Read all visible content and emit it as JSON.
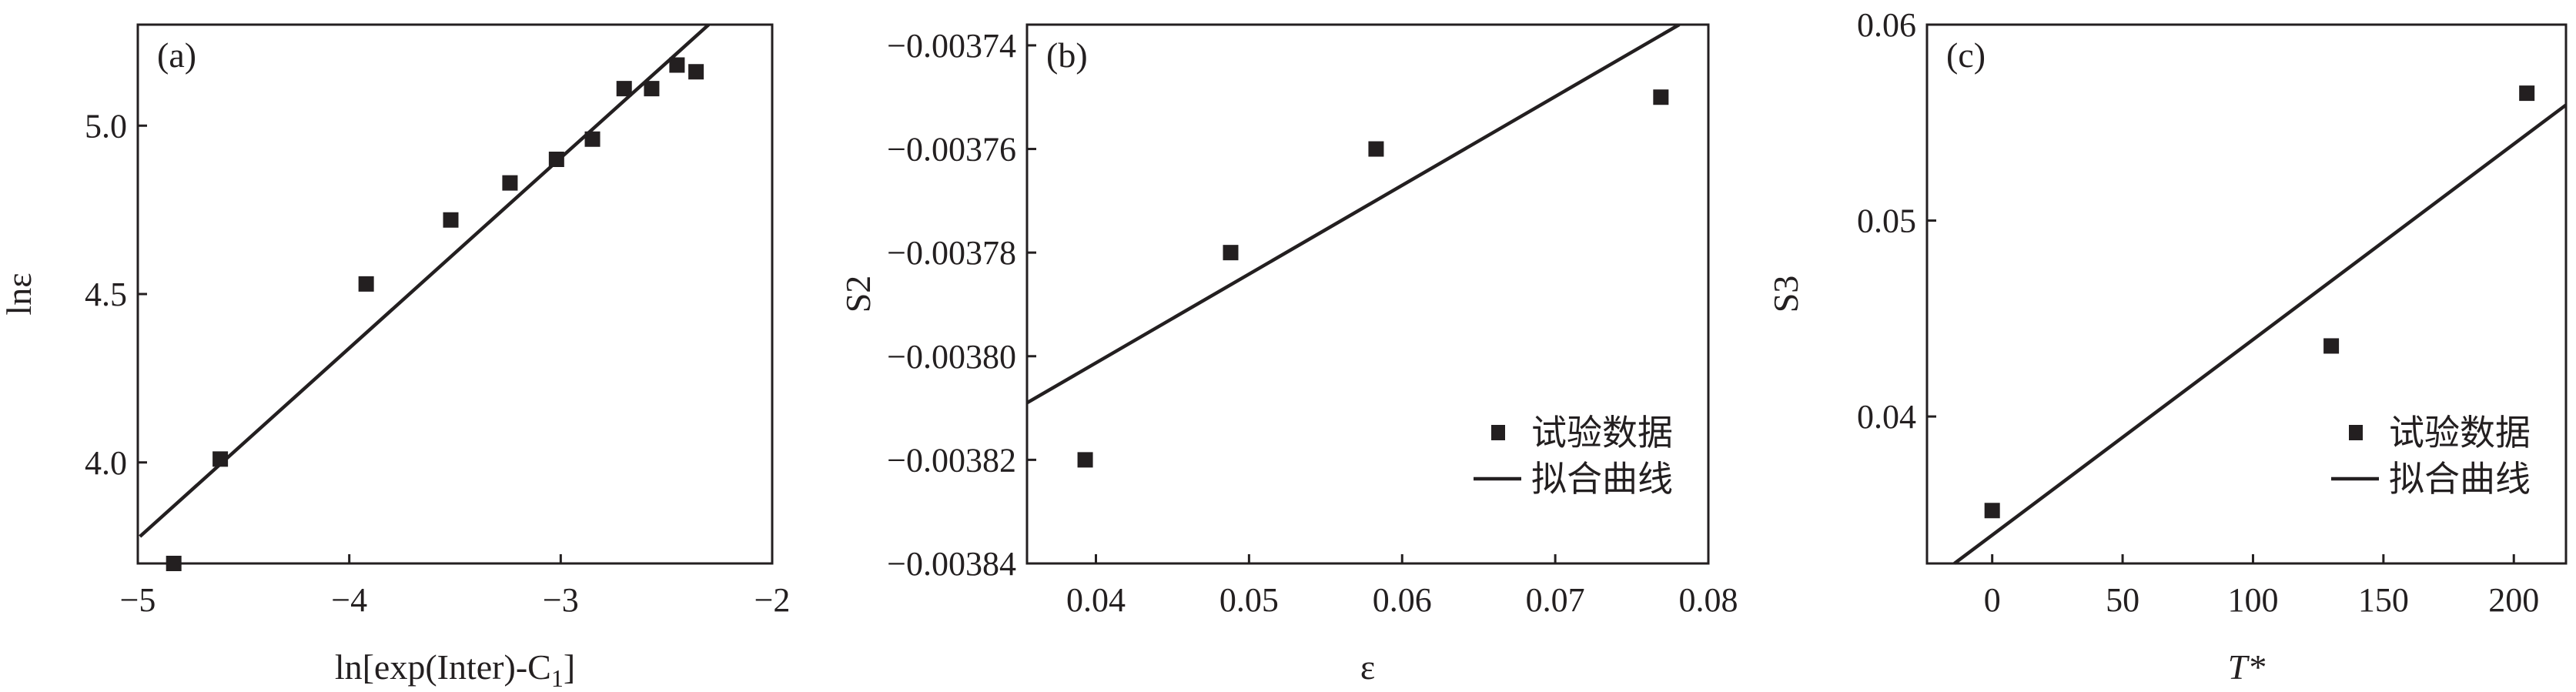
{
  "chart_data": [
    {
      "type": "scatter",
      "panel_label": "(a)",
      "xlabel": "ln[exp(Inter)-C",
      "xlabel_sub": "1",
      "xlabel_end": "]",
      "ylabel": "lnε",
      "xlim": [
        -5,
        -2
      ],
      "ylim": [
        3.7,
        5.3
      ],
      "xticks": [
        -5,
        -4,
        -3,
        -2
      ],
      "xtick_labels": [
        "−5",
        "−4",
        "−3",
        "−2"
      ],
      "yticks": [
        4.0,
        4.5,
        5.0
      ],
      "ytick_labels": [
        "4.0",
        "4.5",
        "5.0"
      ],
      "grid": false,
      "legend": null,
      "series": [
        {
          "kind": "points",
          "x": [
            -4.83,
            -4.61,
            -3.92,
            -3.52,
            -3.24,
            -3.02,
            -2.85,
            -2.7,
            -2.57,
            -2.45,
            -2.36
          ],
          "y": [
            3.7,
            4.01,
            4.53,
            4.72,
            4.83,
            4.9,
            4.96,
            5.11,
            5.11,
            5.18,
            5.16
          ]
        },
        {
          "kind": "line",
          "x": [
            -4.99,
            -2.3
          ],
          "y": [
            3.78,
            5.3
          ]
        }
      ]
    },
    {
      "type": "scatter",
      "panel_label": "(b)",
      "xlabel": "ε",
      "ylabel": "S2",
      "xlim": [
        0.0355,
        0.08
      ],
      "ylim": [
        -0.00384,
        -0.003736
      ],
      "xticks": [
        0.04,
        0.05,
        0.06,
        0.07,
        0.08
      ],
      "xtick_labels": [
        "0.04",
        "0.05",
        "0.06",
        "0.07",
        "0.08"
      ],
      "yticks": [
        -0.00384,
        -0.00382,
        -0.0038,
        -0.00378,
        -0.00376,
        -0.00374
      ],
      "ytick_labels": [
        "−0.00384",
        "−0.00382",
        "−0.00380",
        "−0.00378",
        "−0.00376",
        "−0.00374"
      ],
      "grid": false,
      "legend": {
        "position": "lower-right",
        "entries": [
          "试验数据",
          "拟合曲线"
        ]
      },
      "series": [
        {
          "kind": "points",
          "name": "试验数据",
          "x": [
            0.0393,
            0.0488,
            0.0583,
            0.0769
          ],
          "y": [
            -0.00382,
            -0.00378,
            -0.00376,
            -0.00375
          ]
        },
        {
          "kind": "line",
          "name": "拟合曲线",
          "x": [
            0.0355,
            0.0781
          ],
          "y": [
            -0.003809,
            -0.003736
          ]
        }
      ]
    },
    {
      "type": "scatter",
      "panel_label": "(c)",
      "xlabel": "T*",
      "ylabel": "S3",
      "xlim": [
        -25,
        220
      ],
      "ylim": [
        0.0325,
        0.06
      ],
      "xticks": [
        0,
        50,
        100,
        150,
        200
      ],
      "xtick_labels": [
        "0",
        "50",
        "100",
        "150",
        "200"
      ],
      "yticks": [
        0.04,
        0.05,
        0.06
      ],
      "ytick_labels": [
        "0.04",
        "0.05",
        "0.06"
      ],
      "grid": false,
      "legend": {
        "position": "lower-right",
        "entries": [
          "试验数据",
          "拟合曲线"
        ]
      },
      "series": [
        {
          "kind": "points",
          "name": "试验数据",
          "x": [
            0,
            130,
            205
          ],
          "y": [
            0.0352,
            0.0436,
            0.0565
          ]
        },
        {
          "kind": "line",
          "name": "拟合曲线",
          "x": [
            -14.5,
            220
          ],
          "y": [
            0.0325,
            0.0559
          ]
        }
      ]
    }
  ]
}
